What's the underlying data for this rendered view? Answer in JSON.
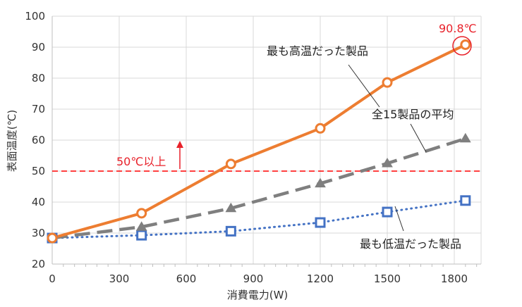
{
  "chart_data": {
    "type": "line",
    "xlabel": "消費電力(W)",
    "ylabel": "表面温度(℃)",
    "xlim": [
      0,
      1920
    ],
    "ylim": [
      20,
      100
    ],
    "x_ticks": [
      "0",
      "300",
      "600",
      "900",
      "1200",
      "1500",
      "1800"
    ],
    "y_ticks": [
      "20",
      "30",
      "40",
      "50",
      "60",
      "70",
      "80",
      "90",
      "100"
    ],
    "grid": true,
    "series": [
      {
        "name": "最も高温だった製品",
        "style": "solid",
        "marker": "circle",
        "color": "#ed7d31",
        "x": [
          0,
          400,
          800,
          1200,
          1500,
          1850
        ],
        "y": [
          28.4,
          36.4,
          52.3,
          63.8,
          78.6,
          90.8
        ]
      },
      {
        "name": "全15製品の平均",
        "style": "dashed",
        "marker": "triangle",
        "color": "#7f7f7f",
        "x": [
          0,
          400,
          800,
          1200,
          1500,
          1850
        ],
        "y": [
          28.4,
          32.0,
          38.0,
          46.0,
          52.5,
          60.5
        ]
      },
      {
        "name": "最も低温だった製品",
        "style": "dotted",
        "marker": "square",
        "color": "#4472c4",
        "x": [
          0,
          400,
          800,
          1200,
          1500,
          1850
        ],
        "y": [
          28.4,
          29.3,
          30.6,
          33.4,
          36.8,
          40.5
        ]
      }
    ],
    "threshold": {
      "value": 50,
      "label": "50℃以上",
      "color": "#ff0000"
    },
    "peak_label": "90.8℃",
    "annotation_color": "#e8212a"
  }
}
